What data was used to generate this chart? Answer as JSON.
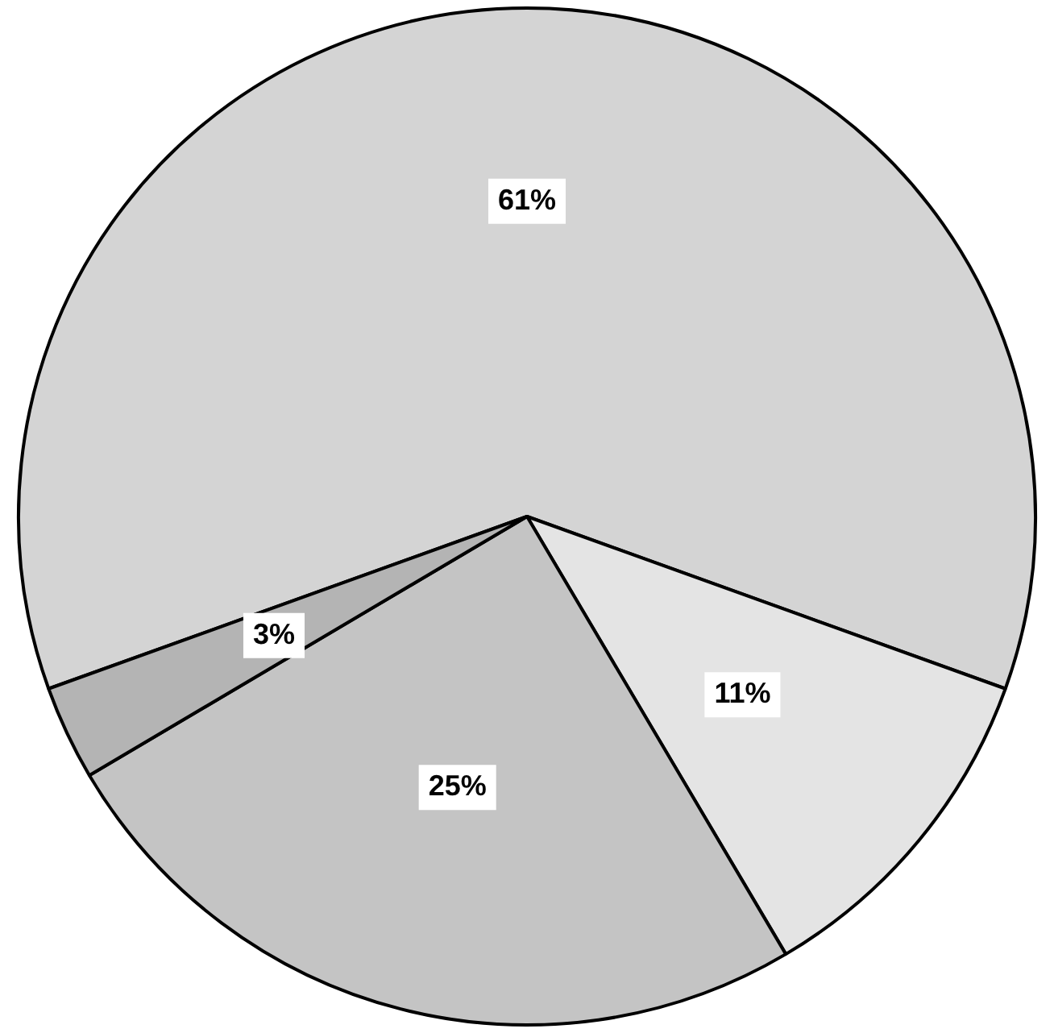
{
  "chart_data": {
    "type": "pie",
    "categories": [
      null,
      null,
      null,
      null
    ],
    "values": [
      61,
      11,
      25,
      3
    ],
    "colors": [
      "#d4d4d4",
      "#e4e4e4",
      "#c4c4c4",
      "#b4b4b4"
    ],
    "value_labels": [
      "61%",
      "11%",
      "25%",
      "3%"
    ]
  }
}
